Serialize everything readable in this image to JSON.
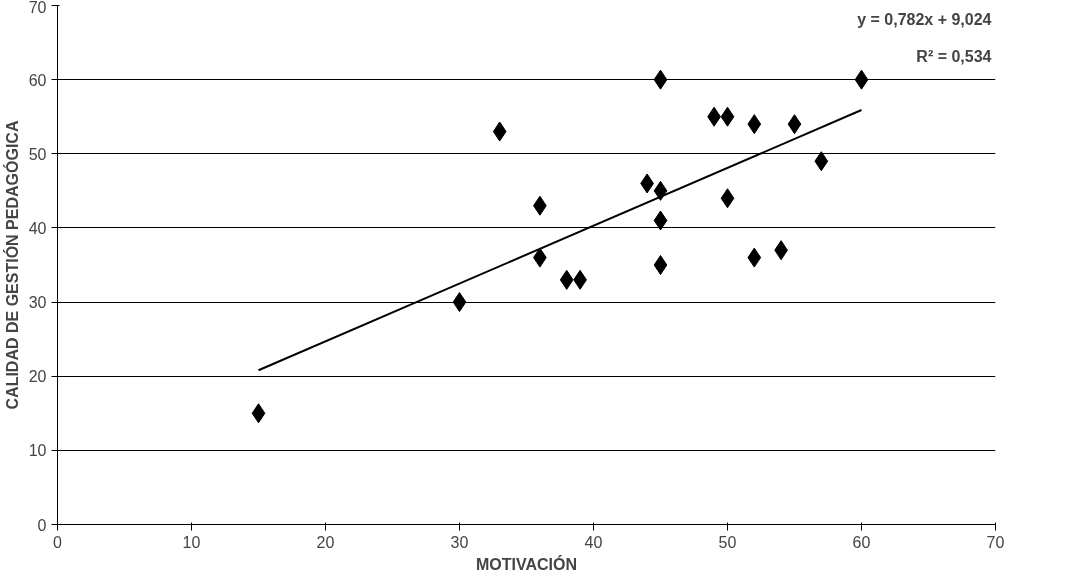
{
  "chart_data": {
    "type": "scatter",
    "xlabel": "MOTIVACIÓN",
    "ylabel": "CALIDAD DE GESTIÓN PEDAGÓGICA",
    "xlim": [
      0,
      70
    ],
    "ylim": [
      0,
      70
    ],
    "xticks": [
      0,
      10,
      20,
      30,
      40,
      50,
      60,
      70
    ],
    "yticks": [
      0,
      10,
      20,
      30,
      40,
      50,
      60,
      70
    ],
    "grid": "y",
    "series": [
      {
        "marker": "diamond",
        "color": "#000000",
        "x": [
          15,
          30,
          33,
          36,
          36,
          38,
          39,
          44,
          45,
          45,
          45,
          45,
          49,
          50,
          50,
          52,
          52,
          54,
          55,
          57,
          60
        ],
        "values": [
          15,
          30,
          53,
          43,
          36,
          33,
          33,
          46,
          45,
          60,
          41,
          35,
          55,
          55,
          44,
          54,
          36,
          37,
          54,
          49,
          60
        ]
      },
      {
        "type": "line",
        "marker": "none",
        "color": "#000000",
        "x": [
          15,
          60
        ],
        "values": [
          20.8,
          55.9
        ]
      }
    ],
    "annotations": [
      "y = 0,782x + 9,024",
      "R² = 0,534"
    ]
  }
}
